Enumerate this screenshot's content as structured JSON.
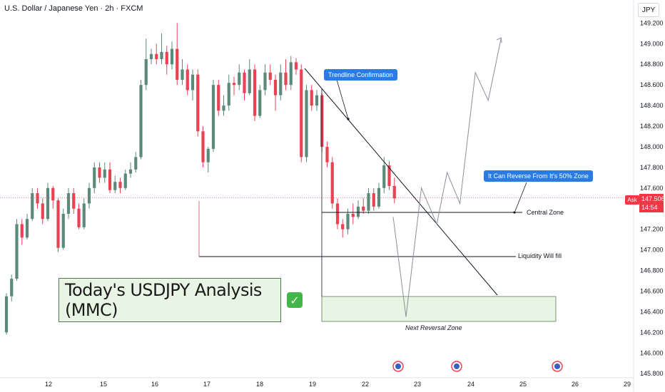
{
  "header": {
    "title": "U.S. Dollar / Japanese Yen · 2h · FXCM",
    "currency": "JPY"
  },
  "annotations": {
    "headline": "Today's USDJPY Analysis (MMC)",
    "check_icon": "check-icon",
    "trendline_label": "Trendline Confirmation",
    "reverse_label": "It Can Reverse From It's 50% Zone",
    "central_zone": "Central Zone",
    "liquidity": "Liquidity Will fill",
    "next_reversal": "Next Reversal Zone"
  },
  "price_badge": {
    "side": "Ask",
    "price": "147.506",
    "countdown": "14:54"
  },
  "colors": {
    "up": "#5b8a7a",
    "down": "#e84255",
    "zone_fill": "#e8f5e4",
    "callout": "#2a7be4",
    "price_line": "#f23645"
  },
  "chart_data": {
    "type": "candlestick",
    "xlabel": "",
    "ylabel": "",
    "ylim": [
      145.76,
      149.32
    ],
    "y_ticks": [
      "149.200",
      "149.000",
      "148.800",
      "148.600",
      "148.400",
      "148.200",
      "148.000",
      "147.800",
      "147.600",
      "147.400",
      "147.200",
      "147.000",
      "146.800",
      "146.600",
      "146.400",
      "146.200",
      "146.000",
      "145.800"
    ],
    "x_ticks": [
      "12",
      "15",
      "16",
      "17",
      "18",
      "19",
      "22",
      "23",
      "24",
      "25",
      "26",
      "29"
    ],
    "current_price": 147.506,
    "candles": [
      [
        146.2,
        146.55,
        146.58,
        146.18
      ],
      [
        146.55,
        146.72,
        146.76,
        146.5
      ],
      [
        146.72,
        147.25,
        147.3,
        146.7
      ],
      [
        147.25,
        147.12,
        147.3,
        147.05
      ],
      [
        147.12,
        147.3,
        147.35,
        147.1
      ],
      [
        147.3,
        147.55,
        147.6,
        147.28
      ],
      [
        147.55,
        147.45,
        147.6,
        147.4
      ],
      [
        147.45,
        147.3,
        147.5,
        147.25
      ],
      [
        147.3,
        147.6,
        147.65,
        147.28
      ],
      [
        147.6,
        147.48,
        147.62,
        147.4
      ],
      [
        147.48,
        147.02,
        147.5,
        146.98
      ],
      [
        147.02,
        147.35,
        147.4,
        147.0
      ],
      [
        147.35,
        147.55,
        147.6,
        147.3
      ],
      [
        147.55,
        147.4,
        147.6,
        147.35
      ],
      [
        147.4,
        147.22,
        147.45,
        147.2
      ],
      [
        147.22,
        147.45,
        147.5,
        147.2
      ],
      [
        147.45,
        147.6,
        147.65,
        147.4
      ],
      [
        147.6,
        147.8,
        147.85,
        147.55
      ],
      [
        147.8,
        147.7,
        147.85,
        147.65
      ],
      [
        147.7,
        147.78,
        147.85,
        147.65
      ],
      [
        147.78,
        147.58,
        147.85,
        147.55
      ],
      [
        147.58,
        147.66,
        147.72,
        147.55
      ],
      [
        147.66,
        147.6,
        147.7,
        147.55
      ],
      [
        147.6,
        147.74,
        147.78,
        147.58
      ],
      [
        147.74,
        147.78,
        147.85,
        147.7
      ],
      [
        147.78,
        147.9,
        147.95,
        147.75
      ],
      [
        147.9,
        148.6,
        148.65,
        147.88
      ],
      [
        148.6,
        148.85,
        149.05,
        148.55
      ],
      [
        148.85,
        148.9,
        148.95,
        148.8
      ],
      [
        148.9,
        148.85,
        149.0,
        148.8
      ],
      [
        148.85,
        148.92,
        149.1,
        148.8
      ],
      [
        148.92,
        148.8,
        148.98,
        148.7
      ],
      [
        148.8,
        148.95,
        149.02,
        148.75
      ],
      [
        148.95,
        148.65,
        149.2,
        148.6
      ],
      [
        148.65,
        148.75,
        148.85,
        148.6
      ],
      [
        148.75,
        148.55,
        148.8,
        148.5
      ],
      [
        148.55,
        148.7,
        148.75,
        148.45
      ],
      [
        148.7,
        148.15,
        148.75,
        148.1
      ],
      [
        148.15,
        147.85,
        148.2,
        147.8
      ],
      [
        147.85,
        147.98,
        148.0,
        147.75
      ],
      [
        147.98,
        148.6,
        148.65,
        147.95
      ],
      [
        148.6,
        148.35,
        148.65,
        148.3
      ],
      [
        148.35,
        148.4,
        148.5,
        148.3
      ],
      [
        148.4,
        148.62,
        148.7,
        148.35
      ],
      [
        148.62,
        148.6,
        148.68,
        148.5
      ],
      [
        148.6,
        148.72,
        148.8,
        148.55
      ],
      [
        148.72,
        148.52,
        148.75,
        148.45
      ],
      [
        148.52,
        148.75,
        148.85,
        148.5
      ],
      [
        148.75,
        148.3,
        148.8,
        148.25
      ],
      [
        148.3,
        148.55,
        148.6,
        148.28
      ],
      [
        148.55,
        148.72,
        148.8,
        148.5
      ],
      [
        148.72,
        148.65,
        148.8,
        148.6
      ],
      [
        148.65,
        148.5,
        148.7,
        148.35
      ],
      [
        148.5,
        148.72,
        148.8,
        148.45
      ],
      [
        148.72,
        148.6,
        148.85,
        148.55
      ],
      [
        148.6,
        148.82,
        148.88,
        148.55
      ],
      [
        148.82,
        148.75,
        148.86,
        148.7
      ],
      [
        148.75,
        147.9,
        148.8,
        147.85
      ],
      [
        147.9,
        148.55,
        148.6,
        147.85
      ],
      [
        148.55,
        148.4,
        148.6,
        148.35
      ],
      [
        148.4,
        148.5,
        148.55,
        148.35
      ],
      [
        148.5,
        148.0,
        148.52,
        147.95
      ],
      [
        148.0,
        147.85,
        148.05,
        147.8
      ],
      [
        147.85,
        147.45,
        147.9,
        147.4
      ],
      [
        147.45,
        147.25,
        147.5,
        147.2
      ],
      [
        147.25,
        147.2,
        147.3,
        147.12
      ],
      [
        147.2,
        147.35,
        147.4,
        147.15
      ],
      [
        147.35,
        147.32,
        147.45,
        147.25
      ],
      [
        147.32,
        147.42,
        147.48,
        147.3
      ],
      [
        147.42,
        147.38,
        147.5,
        147.35
      ],
      [
        147.38,
        147.55,
        147.6,
        147.35
      ],
      [
        147.55,
        147.42,
        147.6,
        147.38
      ],
      [
        147.42,
        147.6,
        147.65,
        147.4
      ],
      [
        147.6,
        147.82,
        147.9,
        147.55
      ],
      [
        147.82,
        147.62,
        147.86,
        147.58
      ],
      [
        147.62,
        147.5,
        147.7,
        147.45
      ]
    ],
    "projection": [
      [
        147.32,
        0
      ],
      [
        146.35,
        5
      ],
      [
        147.6,
        11
      ],
      [
        147.25,
        17
      ],
      [
        147.75,
        21
      ],
      [
        147.45,
        26
      ],
      [
        148.72,
        32
      ],
      [
        148.45,
        37
      ],
      [
        149.05,
        42
      ]
    ]
  }
}
